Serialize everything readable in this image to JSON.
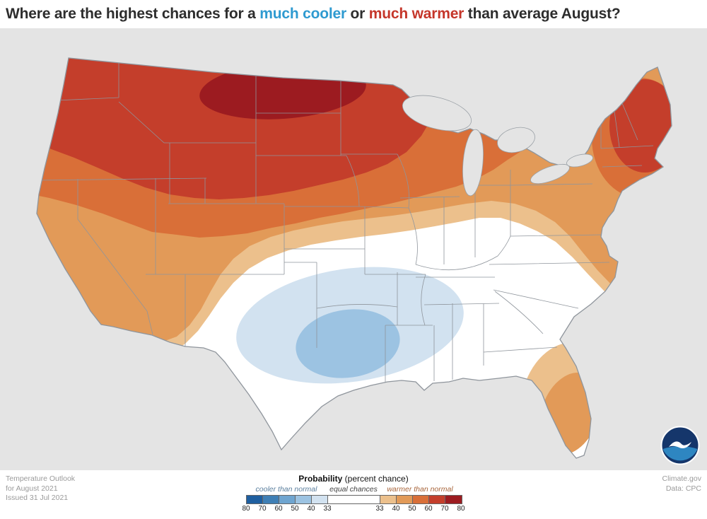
{
  "header": {
    "title_prefix": "Where are the highest chances for a ",
    "title_cooler": "much cooler",
    "title_or": " or ",
    "title_warmer": "much warmer",
    "title_suffix": " than average August?",
    "cooler_color": "#2e9ad0",
    "warmer_color": "#c5362a"
  },
  "map": {
    "background_color": "#e4e4e4",
    "equal_chances_fill": "#ffffff",
    "state_border_color": "#8f959c"
  },
  "legend": {
    "title": "Probability",
    "title_suffix": " (percent chance)",
    "cooler_label": "cooler than normal",
    "equal_label": "equal chances",
    "warmer_label": "warmer than normal",
    "cooler_ticks": [
      "80",
      "70",
      "60",
      "50",
      "40",
      "33"
    ],
    "warmer_ticks": [
      "33",
      "40",
      "50",
      "60",
      "70",
      "80"
    ],
    "cooler_colors": [
      "#1f5fa0",
      "#3f7fb5",
      "#6fa5d0",
      "#9cc3e2",
      "#d2e2f0"
    ],
    "warmer_colors": [
      "#ecc08c",
      "#e29a58",
      "#d96f38",
      "#c43e2b",
      "#9c1b20"
    ],
    "equal_color": "#ffffff"
  },
  "attribution": {
    "line1": "Temperature Outlook",
    "line2": "for August 2021",
    "line3": "Issued 31 Jul 2021"
  },
  "credit": {
    "line1": "Climate.gov",
    "line2": "Data: CPC"
  },
  "logo": {
    "label": "NOAA"
  }
}
